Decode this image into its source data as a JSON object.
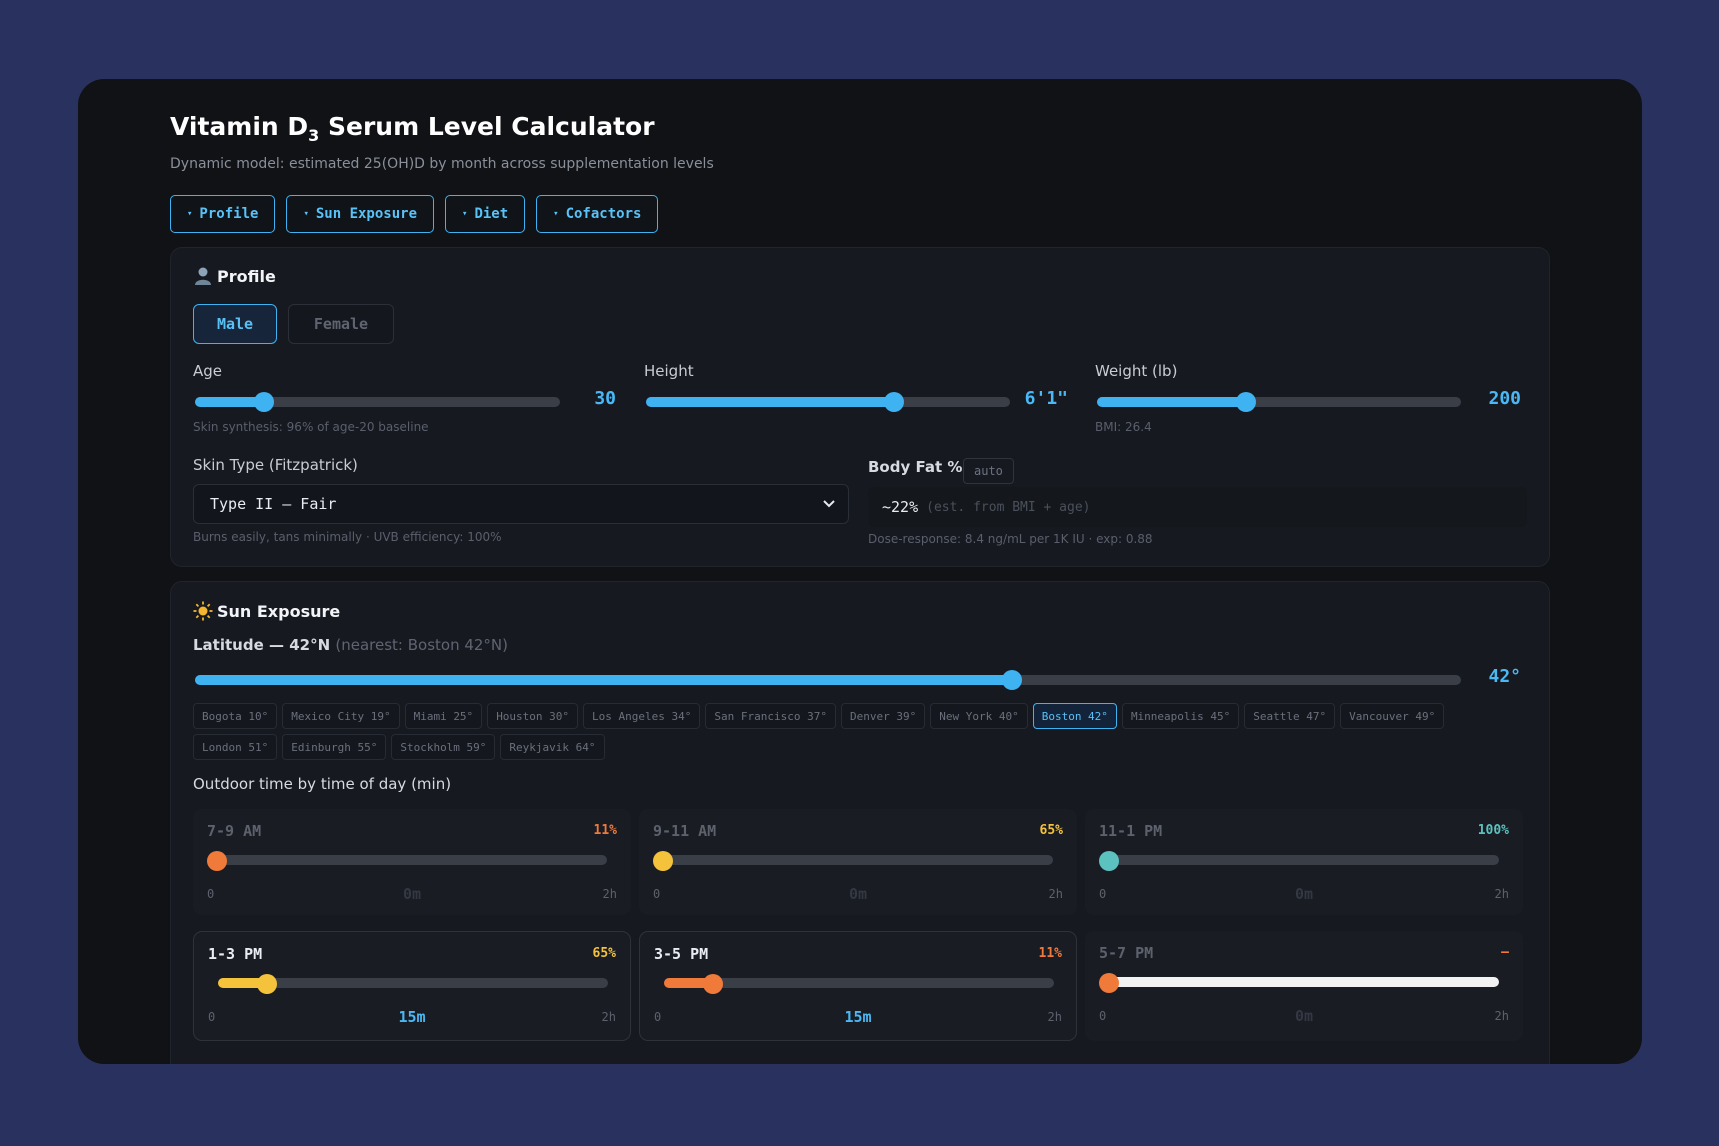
{
  "app": {
    "title_main": "Vitamin D",
    "title_sub": "3",
    "title_rest": " Serum Level Calculator",
    "subtitle": "Dynamic model: estimated 25(OH)D by month across supplementation levels"
  },
  "tabs": [
    {
      "label": "Profile"
    },
    {
      "label": "Sun Exposure"
    },
    {
      "label": "Diet"
    },
    {
      "label": "Cofactors"
    }
  ],
  "profile": {
    "heading": "Profile",
    "sex_options": [
      "Male",
      "Female"
    ],
    "sex_selected": "Male",
    "age": {
      "label": "Age",
      "value_text": "30",
      "fraction": 0.19,
      "hint": "Skin synthesis: 96% of age-20 baseline"
    },
    "height": {
      "label": "Height",
      "value_text": "6'1\"",
      "fraction": 0.68
    },
    "weight": {
      "label": "Weight (lb)",
      "value_text": "200",
      "fraction": 0.41,
      "hint": "BMI: 26.4"
    },
    "skin_type": {
      "label": "Skin Type (Fitzpatrick)",
      "selected": "Type II — Fair",
      "hint": "Burns easily, tans minimally · UVB efficiency: 100%"
    },
    "body_fat": {
      "label": "Body Fat %",
      "auto_label": "auto",
      "value": "~22%",
      "note": "(est. from BMI + age)",
      "hint": "Dose-response: 8.4 ng/mL per 1K IU · exp: 0.88"
    }
  },
  "sun": {
    "heading": "Sun Exposure",
    "latitude_label": "Latitude — 42°N",
    "latitude_nearest": "(nearest: Boston 42°N)",
    "latitude_value_text": "42°",
    "latitude_fraction": 0.645,
    "cities": [
      {
        "label": "Bogota 10°",
        "selected": false
      },
      {
        "label": "Mexico City 19°",
        "selected": false
      },
      {
        "label": "Miami 25°",
        "selected": false
      },
      {
        "label": "Houston 30°",
        "selected": false
      },
      {
        "label": "Los Angeles 34°",
        "selected": false
      },
      {
        "label": "San Francisco 37°",
        "selected": false
      },
      {
        "label": "Denver 39°",
        "selected": false
      },
      {
        "label": "New York 40°",
        "selected": false
      },
      {
        "label": "Boston 42°",
        "selected": true
      },
      {
        "label": "Minneapolis 45°",
        "selected": false
      },
      {
        "label": "Seattle 47°",
        "selected": false
      },
      {
        "label": "Vancouver 49°",
        "selected": false
      },
      {
        "label": "London 51°",
        "selected": false
      },
      {
        "label": "Edinburgh 55°",
        "selected": false
      },
      {
        "label": "Stockholm 59°",
        "selected": false
      },
      {
        "label": "Reykjavik 64°",
        "selected": false
      }
    ],
    "outdoor_label": "Outdoor time by time of day (min)",
    "slots": [
      {
        "label": "7-9 AM",
        "pct": "11%",
        "color": "#f07a3a",
        "current": "0m",
        "fraction": 0.0,
        "active": false,
        "min": "0",
        "max": "2h",
        "track": "#3a3e47"
      },
      {
        "label": "9-11 AM",
        "pct": "65%",
        "color": "#f5c33b",
        "current": "0m",
        "fraction": 0.0,
        "active": false,
        "min": "0",
        "max": "2h",
        "track": "#3a3e47"
      },
      {
        "label": "11-1 PM",
        "pct": "100%",
        "color": "#5bc2c0",
        "current": "0m",
        "fraction": 0.0,
        "active": false,
        "min": "0",
        "max": "2h",
        "track": "#3a3e47"
      },
      {
        "label": "1-3 PM",
        "pct": "65%",
        "color": "#f5c33b",
        "current": "15m",
        "fraction": 0.125,
        "active": true,
        "min": "0",
        "max": "2h",
        "track": "#3a3e47"
      },
      {
        "label": "3-5 PM",
        "pct": "11%",
        "color": "#f07a3a",
        "current": "15m",
        "fraction": 0.125,
        "active": true,
        "min": "0",
        "max": "2h",
        "track": "#3a3e47"
      },
      {
        "label": "5-7 PM",
        "pct": "–",
        "color": "#f07a3a",
        "current": "0m",
        "fraction": 0.0,
        "active": false,
        "min": "0",
        "max": "2h",
        "track": "#f2f2f2"
      }
    ]
  }
}
